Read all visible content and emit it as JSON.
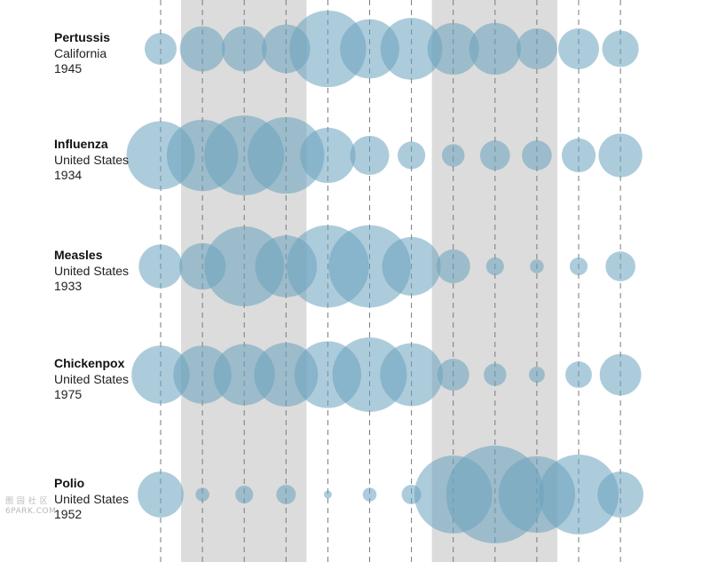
{
  "chart_data": {
    "type": "bubble",
    "title": "",
    "months": 12,
    "shaded_columns": [
      2,
      3,
      4,
      8,
      9,
      10
    ],
    "series": [
      {
        "name": "Pertussis",
        "place": "California",
        "year": "1945",
        "color": "#6aa3bd",
        "values": [
          0.16,
          0.32,
          0.32,
          0.37,
          0.92,
          0.55,
          0.6,
          0.42,
          0.42,
          0.26,
          0.26,
          0.21
        ]
      },
      {
        "name": "Influenza",
        "place": "United States",
        "year": "1934",
        "color": "#6aa3bd",
        "values": [
          0.73,
          0.8,
          1.0,
          0.92,
          0.48,
          0.24,
          0.12,
          0.08,
          0.14,
          0.14,
          0.18,
          0.3
        ]
      },
      {
        "name": "Measles",
        "place": "United States",
        "year": "1933",
        "color": "#6aa3bd",
        "values": [
          0.3,
          0.34,
          1.0,
          0.6,
          1.06,
          1.06,
          0.54,
          0.18,
          0.05,
          0.03,
          0.05,
          0.14
        ]
      },
      {
        "name": "Chickenpox",
        "place": "United States",
        "year": "1975",
        "color": "#6aa3bd",
        "values": [
          0.53,
          0.53,
          0.59,
          0.64,
          0.7,
          0.87,
          0.62,
          0.16,
          0.08,
          0.04,
          0.11,
          0.27
        ]
      },
      {
        "name": "Polio",
        "place": "United States",
        "year": "1952",
        "color": "#6aa3bd",
        "values": [
          0.33,
          0.03,
          0.05,
          0.06,
          0.01,
          0.03,
          0.06,
          0.95,
          1.5,
          0.92,
          1.0,
          0.33
        ]
      }
    ]
  },
  "watermark": {
    "line1": "图 园 社 区",
    "line2": "6PARK.COM"
  }
}
